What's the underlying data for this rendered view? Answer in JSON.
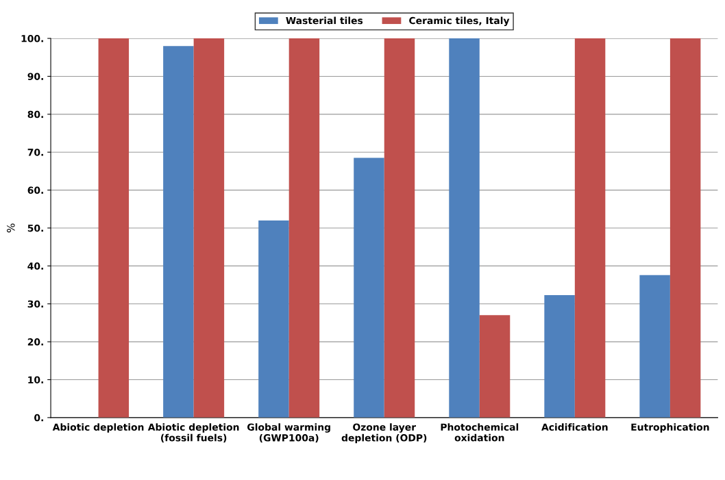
{
  "chart_data": {
    "type": "bar",
    "ylabel": "%",
    "categories": [
      "Abiotic depletion",
      "Abiotic depletion\n(fossil fuels)",
      "Global warming\n(GWP100a)",
      "Ozone layer\ndepletion (ODP)",
      "Photochemical\noxidation",
      "Acidification",
      "Eutrophication"
    ],
    "series": [
      {
        "name": "Wasterial tiles",
        "color": "#4f81bd",
        "values": [
          0,
          98,
          52,
          68.5,
          100,
          32.3,
          37.6
        ]
      },
      {
        "name": "Ceramic tiles, Italy",
        "color": "#c0504d",
        "values": [
          100,
          100,
          100,
          100,
          27,
          100,
          100
        ]
      }
    ],
    "ylim": [
      0,
      100
    ],
    "yticks": [
      {
        "value": 0,
        "label": "0."
      },
      {
        "value": 10,
        "label": "10."
      },
      {
        "value": 20,
        "label": "20."
      },
      {
        "value": 30,
        "label": "30."
      },
      {
        "value": 40,
        "label": "40."
      },
      {
        "value": 50,
        "label": "50."
      },
      {
        "value": 60,
        "label": "60."
      },
      {
        "value": 70,
        "label": "70."
      },
      {
        "value": 80,
        "label": "80."
      },
      {
        "value": 90,
        "label": "90."
      },
      {
        "value": 100,
        "label": "100."
      }
    ],
    "grid": "y",
    "legend": "top"
  }
}
